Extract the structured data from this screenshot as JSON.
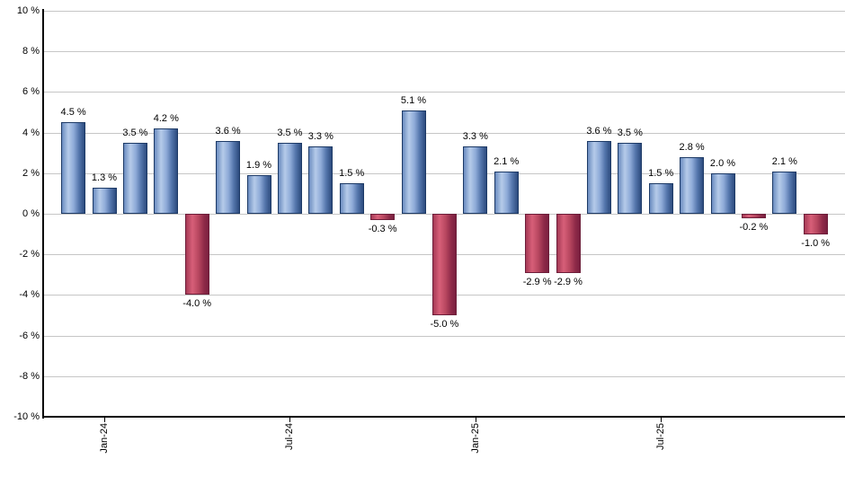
{
  "chart_data": {
    "type": "bar",
    "title": "",
    "xlabel": "",
    "ylabel": "",
    "ylim": [
      -10,
      10
    ],
    "grid": true,
    "values": [
      4.5,
      1.3,
      3.5,
      4.2,
      -4.0,
      3.6,
      1.9,
      3.5,
      3.3,
      1.5,
      -0.3,
      5.1,
      -5.0,
      3.3,
      2.1,
      -2.9,
      -2.9,
      3.6,
      3.5,
      1.5,
      2.8,
      2.0,
      -0.2,
      2.1,
      -1.0
    ],
    "bar_value_labels": [
      "4.5 %",
      "1.3 %",
      "3.5 %",
      "4.2 %",
      "-4.0 %",
      "3.6 %",
      "1.9 %",
      "3.5 %",
      "3.3 %",
      "1.5 %",
      "-0.3 %",
      "5.1 %",
      "-5.0 %",
      "3.3 %",
      "2.1 %",
      "-2.9 %",
      "-2.9 %",
      "3.6 %",
      "3.5 %",
      "1.5 %",
      "2.8 %",
      "2.0 %",
      "-0.2 %",
      "2.1 %",
      "-1.0 %"
    ],
    "y_tick_values": [
      10,
      8,
      6,
      4,
      2,
      0,
      -2,
      -4,
      -6,
      -8,
      -10
    ],
    "y_tick_labels": [
      "10 %",
      "8 %",
      "6 %",
      "4 %",
      "2 %",
      "0 %",
      "-2 %",
      "-4 %",
      "-6 %",
      "-8 %",
      "-10 %"
    ],
    "x_ticks": [
      {
        "bar_index": 1,
        "label": "Jan-24"
      },
      {
        "bar_index": 7,
        "label": "Jul-24"
      },
      {
        "bar_index": 13,
        "label": "Jan-25"
      },
      {
        "bar_index": 19,
        "label": "Jul-25"
      }
    ],
    "colors": {
      "positive_fill_light": "#b5cbe9",
      "positive_fill_dark": "#2d4b7e",
      "positive_border": "#1d3a66",
      "negative_fill_light": "#d75f78",
      "negative_fill_dark": "#7a2040",
      "negative_border": "#6d1e3a",
      "gridline": "#c6c6c6",
      "axis": "#000000",
      "background": "#ffffff"
    }
  }
}
